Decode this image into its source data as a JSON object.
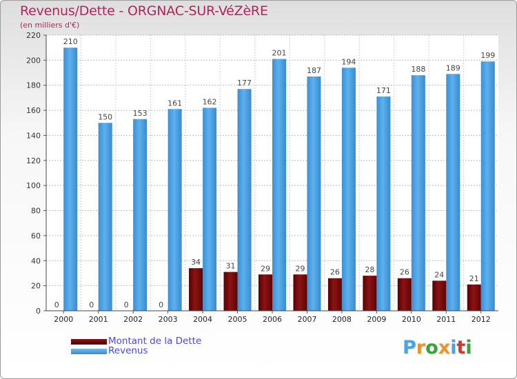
{
  "header": {
    "title": "Revenus/Dette - ORGNAC-SUR-VéZèRE",
    "subtitle": "(en milliers d'€)"
  },
  "chart_data": {
    "type": "bar",
    "categories": [
      "2000",
      "2001",
      "2002",
      "2003",
      "2004",
      "2005",
      "2006",
      "2007",
      "2008",
      "2009",
      "2010",
      "2011",
      "2012"
    ],
    "series": [
      {
        "name": "Montant de la Dette",
        "color": "#7a0a0a",
        "values": [
          0,
          0,
          0,
          0,
          34,
          31,
          29,
          29,
          26,
          28,
          26,
          24,
          21
        ]
      },
      {
        "name": "Revenus",
        "color": "#4aa3e6",
        "values": [
          210,
          150,
          153,
          161,
          162,
          177,
          201,
          187,
          194,
          171,
          188,
          189,
          199
        ]
      }
    ],
    "yticks": [
      0,
      20,
      40,
      60,
      80,
      100,
      120,
      140,
      160,
      180,
      200,
      220
    ],
    "ylim": [
      0,
      220
    ],
    "grid": true,
    "legend_position": "bottom-left"
  },
  "legend": {
    "debt_label": "Montant de la Dette",
    "revenue_label": "Revenus"
  },
  "logo": {
    "text": "Proxiti",
    "colors": [
      "#4aa3e6",
      "#e8952a",
      "#3aa33a",
      "#e8952a",
      "#4aa3e6",
      "#d3362f",
      "#3aa33a"
    ]
  }
}
